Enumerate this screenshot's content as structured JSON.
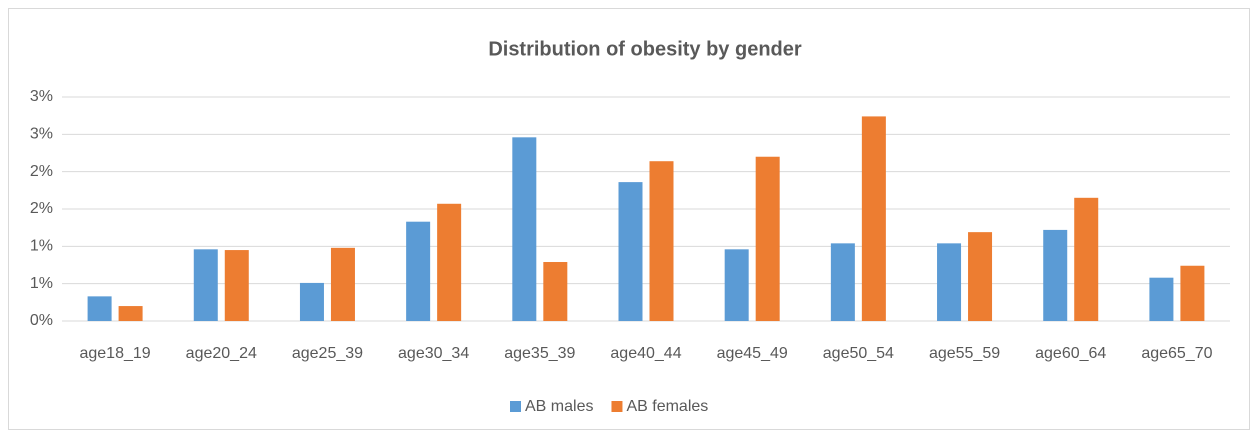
{
  "chart_data": {
    "type": "bar",
    "title": "Distribution of obesity by gender",
    "categories": [
      "age18_19",
      "age20_24",
      "age25_39",
      "age30_34",
      "age35_39",
      "age40_44",
      "age45_49",
      "age50_54",
      "age55_59",
      "age60_64",
      "age65_70"
    ],
    "series": [
      {
        "name": "AB males",
        "color": "#5b9bd5",
        "values": [
          0.33,
          0.96,
          0.51,
          1.33,
          2.46,
          1.86,
          0.96,
          1.04,
          1.04,
          1.22,
          0.58
        ]
      },
      {
        "name": "AB females",
        "color": "#ed7d31",
        "values": [
          0.2,
          0.95,
          0.98,
          1.57,
          0.79,
          2.14,
          2.2,
          2.74,
          1.19,
          1.65,
          0.74
        ]
      }
    ],
    "ylim": [
      0,
      3
    ],
    "yticks": [
      {
        "value": 0,
        "label": "0%"
      },
      {
        "value": 0.5,
        "label": "1%"
      },
      {
        "value": 1,
        "label": "1%"
      },
      {
        "value": 1.5,
        "label": "2%"
      },
      {
        "value": 2,
        "label": "2%"
      },
      {
        "value": 2.5,
        "label": "3%"
      },
      {
        "value": 3,
        "label": "3%"
      }
    ],
    "grid": true,
    "legend": "bottom"
  }
}
